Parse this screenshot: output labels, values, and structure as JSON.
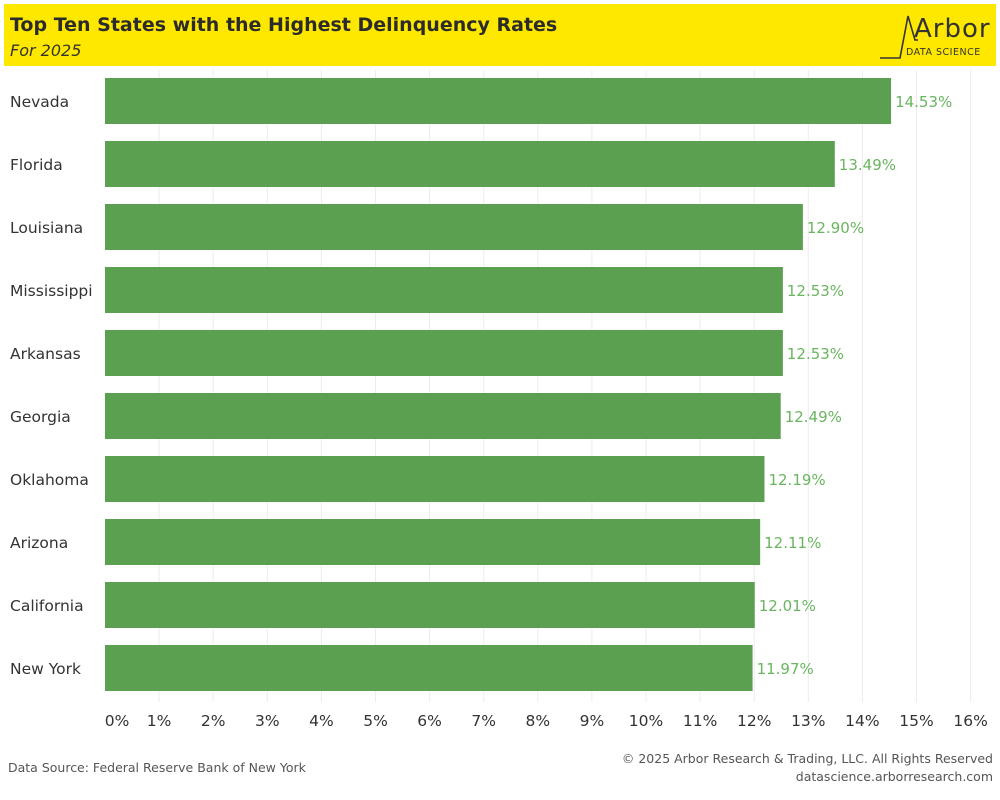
{
  "header": {
    "title": "Top Ten States with the Highest Delinquency Rates",
    "subtitle": "For 2025",
    "logo_word": "Arbor",
    "logo_sub": "DATA SCIENCE"
  },
  "colors": {
    "header_bg": "#ffe800",
    "bar": "#5aa050",
    "value_label": "#6ab560"
  },
  "chart_data": {
    "type": "bar",
    "orientation": "horizontal",
    "title": "Top Ten States with the Highest Delinquency Rates",
    "subtitle": "For 2025",
    "categories": [
      "Nevada",
      "Florida",
      "Louisiana",
      "Mississippi",
      "Arkansas",
      "Georgia",
      "Oklahoma",
      "Arizona",
      "California",
      "New York"
    ],
    "values": [
      14.53,
      13.49,
      12.9,
      12.53,
      12.53,
      12.49,
      12.19,
      12.11,
      12.01,
      11.97
    ],
    "value_labels": [
      "14.53%",
      "13.49%",
      "12.90%",
      "12.53%",
      "12.53%",
      "12.49%",
      "12.19%",
      "12.11%",
      "12.01%",
      "11.97%"
    ],
    "x_ticks": [
      "0%",
      "1%",
      "2%",
      "3%",
      "4%",
      "5%",
      "6%",
      "7%",
      "8%",
      "9%",
      "10%",
      "11%",
      "12%",
      "13%",
      "14%",
      "15%",
      "16%"
    ],
    "xlim": [
      0,
      16
    ],
    "xlabel": "",
    "ylabel": "",
    "grid": "vertical"
  },
  "footer": {
    "source": "Data Source: Federal Reserve Bank of New York",
    "copyright": "© 2025 Arbor Research & Trading, LLC. All Rights Reserved",
    "website": "datascience.arborresearch.com"
  }
}
